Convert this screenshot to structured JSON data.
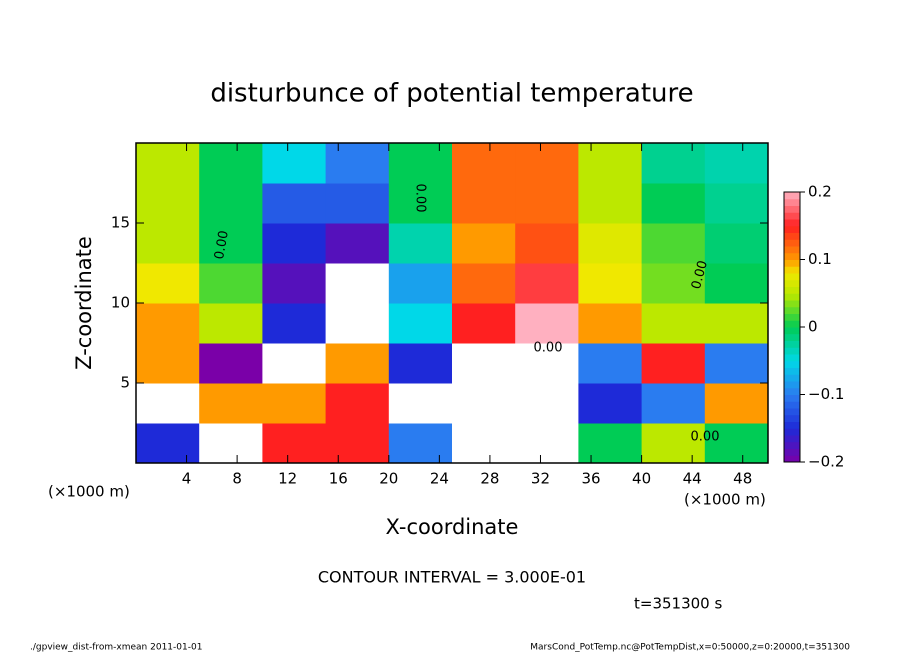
{
  "chart_data": {
    "type": "contour",
    "title": "disturbunce of potential temperature",
    "xlabel": "X-coordinate",
    "ylabel": "Z-coordinate",
    "xunit": "(×1000 m)",
    "yunit": "(×1000 m)",
    "x": [
      2.5,
      7.5,
      12.5,
      17.5,
      22.5,
      27.5,
      32.5,
      37.5,
      42.5,
      47.5
    ],
    "y": [
      1.25,
      3.75,
      6.25,
      8.75,
      11.25,
      13.75,
      16.25,
      18.75
    ],
    "z": [
      [
        -0.15,
        -0.25,
        0.15,
        0.15,
        -0.1,
        -0.25,
        -0.25,
        0.0,
        0.05,
        0.0
      ],
      [
        -0.25,
        0.1,
        0.1,
        0.15,
        -0.25,
        -0.25,
        -0.25,
        -0.15,
        -0.1,
        0.1
      ],
      [
        0.1,
        -0.2,
        -0.25,
        0.1,
        -0.15,
        -0.25,
        -0.25,
        -0.1,
        0.15,
        -0.1
      ],
      [
        0.1,
        0.05,
        -0.15,
        -0.25,
        -0.05,
        0.15,
        0.2,
        0.1,
        0.05,
        0.05
      ],
      [
        0.08,
        0.02,
        -0.18,
        -0.25,
        -0.08,
        0.12,
        0.16,
        0.08,
        0.03,
        0.0
      ],
      [
        0.05,
        0.0,
        -0.15,
        -0.18,
        -0.03,
        0.1,
        0.13,
        0.07,
        0.02,
        -0.01
      ],
      [
        0.05,
        0.0,
        -0.12,
        -0.12,
        0.0,
        0.12,
        0.12,
        0.05,
        0.0,
        -0.02
      ],
      [
        0.05,
        0.0,
        -0.05,
        -0.1,
        0.0,
        0.12,
        0.12,
        0.05,
        -0.02,
        -0.03
      ]
    ],
    "xlim": [
      0,
      50
    ],
    "ylim": [
      0,
      20
    ],
    "xticks": [
      4,
      8,
      12,
      16,
      20,
      24,
      28,
      32,
      36,
      40,
      44,
      48
    ],
    "yticks": [
      5,
      10,
      15
    ],
    "clim": [
      -0.2,
      0.2
    ],
    "cticks": [
      {
        "value": -0.2,
        "label": "−0.2"
      },
      {
        "value": -0.1,
        "label": "−0.1"
      },
      0,
      0.1,
      0.2
    ],
    "contour_labels": [
      "0.00",
      "0.00",
      "0.00",
      "0.00",
      "0.00"
    ],
    "contour_interval": "CONTOUR INTERVAL = 3.000E-01",
    "time": "t=351300 s",
    "footer_left": "./gpview_dist-from-xmean  2011-01-01",
    "footer_right": "MarsCond_PotTemp.nc@PotTempDist,x=0:50000,z=0:20000,t=351300"
  }
}
